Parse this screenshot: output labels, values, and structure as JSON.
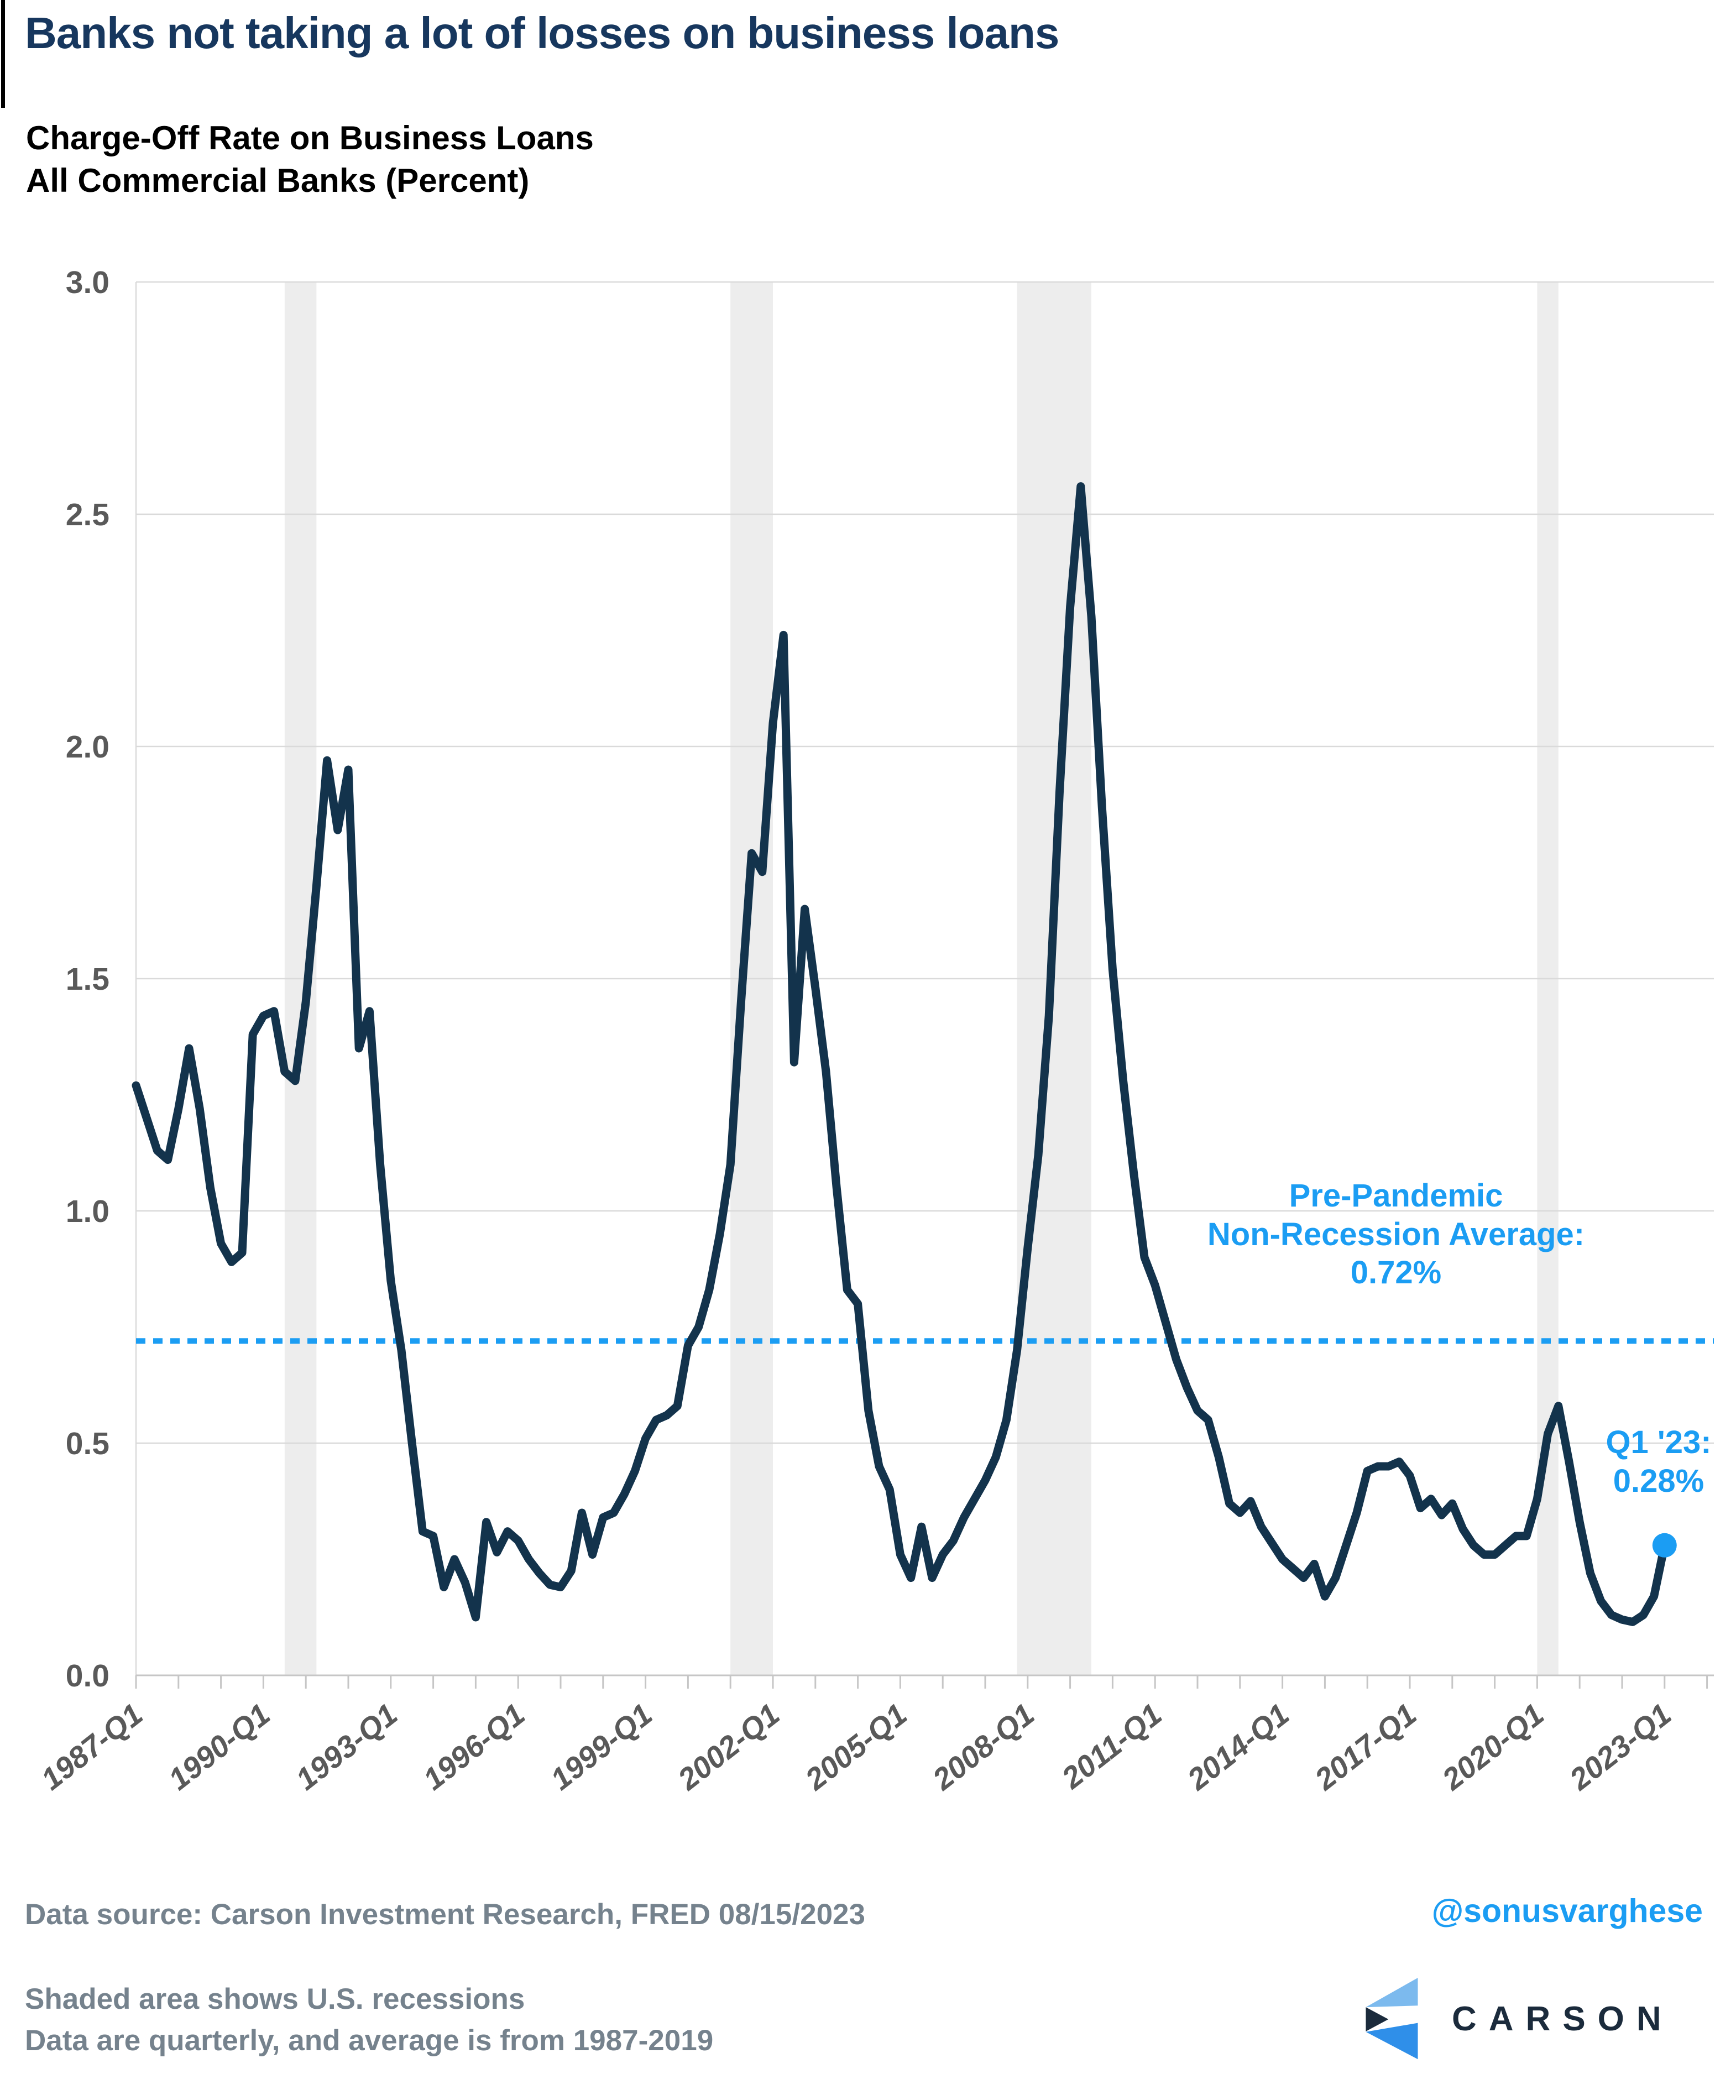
{
  "header": {
    "title": "Banks not taking a lot of losses on business loans",
    "subtitle_line1": "Charge-Off Rate on Business Loans",
    "subtitle_line2": "All Commercial Banks (Percent)"
  },
  "annotations": {
    "average_note_line1": "Pre-Pandemic",
    "average_note_line2": "Non-Recession Average:",
    "average_note_line3": "0.72%",
    "latest_note_line1": "Q1 '23:",
    "latest_note_line2": "0.28%"
  },
  "footer": {
    "source": "Data source: Carson Investment Research, FRED   08/15/2023",
    "handle": "@sonusvarghese",
    "shaded_note": "Shaded area shows U.S. recessions",
    "quarterly_note": "Data are quarterly, and average is from 1987-2019",
    "logo_word": "CARSON"
  },
  "colors": {
    "accent_blue": "#1B9DF3",
    "line_navy": "#13334C",
    "title_navy": "#17375E",
    "axis_label_gray": "#595959",
    "footer_gray": "#75828D",
    "gridline": "#DADADA",
    "axis_line": "#C6C6C6",
    "recession_band": "#EDEDED",
    "logo_light_blue": "#7CBAEE",
    "logo_royal_blue": "#2F8FE9",
    "logo_navy": "#1B2B3C"
  },
  "chart_data": {
    "type": "line",
    "title": "Charge-Off Rate on Business Loans, All Commercial Banks (Percent)",
    "frequency": "quarterly",
    "x_start": "1987-Q1",
    "x_end": "2023-Q1",
    "ylim": [
      0.0,
      3.0
    ],
    "ytick_labels": [
      "0.0",
      "0.5",
      "1.0",
      "1.5",
      "2.0",
      "2.5",
      "3.0"
    ],
    "x_tick_years_minor": [
      1987,
      2024
    ],
    "x_tick_labels": [
      "1987-Q1",
      "1990-Q1",
      "1993-Q1",
      "1996-Q1",
      "1999-Q1",
      "2002-Q1",
      "2005-Q1",
      "2008-Q1",
      "2011-Q1",
      "2014-Q1",
      "2017-Q1",
      "2020-Q1",
      "2023-Q1"
    ],
    "grid": "horizontal",
    "series": [
      {
        "name": "Charge-off rate on business loans",
        "values": [
          1.27,
          1.2,
          1.13,
          1.11,
          1.22,
          1.35,
          1.22,
          1.05,
          0.93,
          0.89,
          0.91,
          1.38,
          1.42,
          1.43,
          1.3,
          1.28,
          1.45,
          1.7,
          1.97,
          1.82,
          1.95,
          1.35,
          1.43,
          1.1,
          0.85,
          0.7,
          0.5,
          0.31,
          0.3,
          0.19,
          0.25,
          0.2,
          0.125,
          0.33,
          0.265,
          0.31,
          0.29,
          0.25,
          0.22,
          0.195,
          0.19,
          0.225,
          0.35,
          0.26,
          0.34,
          0.35,
          0.39,
          0.44,
          0.51,
          0.55,
          0.56,
          0.58,
          0.71,
          0.75,
          0.83,
          0.95,
          1.1,
          1.45,
          1.77,
          1.73,
          2.05,
          2.24,
          1.32,
          1.65,
          1.48,
          1.3,
          1.05,
          0.83,
          0.8,
          0.57,
          0.45,
          0.4,
          0.26,
          0.21,
          0.32,
          0.21,
          0.26,
          0.29,
          0.34,
          0.38,
          0.42,
          0.47,
          0.55,
          0.7,
          0.92,
          1.12,
          1.42,
          1.9,
          2.3,
          2.56,
          2.28,
          1.87,
          1.52,
          1.28,
          1.08,
          0.9,
          0.84,
          0.76,
          0.68,
          0.62,
          0.57,
          0.55,
          0.47,
          0.37,
          0.35,
          0.375,
          0.32,
          0.285,
          0.25,
          0.23,
          0.21,
          0.24,
          0.17,
          0.21,
          0.28,
          0.35,
          0.44,
          0.45,
          0.45,
          0.46,
          0.43,
          0.36,
          0.38,
          0.345,
          0.37,
          0.315,
          0.28,
          0.26,
          0.26,
          0.28,
          0.3,
          0.3,
          0.38,
          0.52,
          0.58,
          0.46,
          0.33,
          0.22,
          0.16,
          0.13,
          0.12,
          0.115,
          0.13,
          0.17,
          0.28
        ]
      }
    ],
    "recession_bands": [
      {
        "from": "1990-Q3",
        "to": "1991-Q1",
        "q_start": 14,
        "q_end": 17
      },
      {
        "from": "2001-Q1",
        "to": "2001-Q4",
        "q_start": 56,
        "q_end": 60
      },
      {
        "from": "2007-Q4",
        "to": "2009-Q2",
        "q_start": 83,
        "q_end": 90
      },
      {
        "from": "2020-Q1",
        "to": "2020-Q2",
        "q_start": 132,
        "q_end": 134
      }
    ],
    "average_line_value": 0.72,
    "last_point": {
      "label": "2023-Q1",
      "value": 0.28
    },
    "legend_position": "none"
  }
}
